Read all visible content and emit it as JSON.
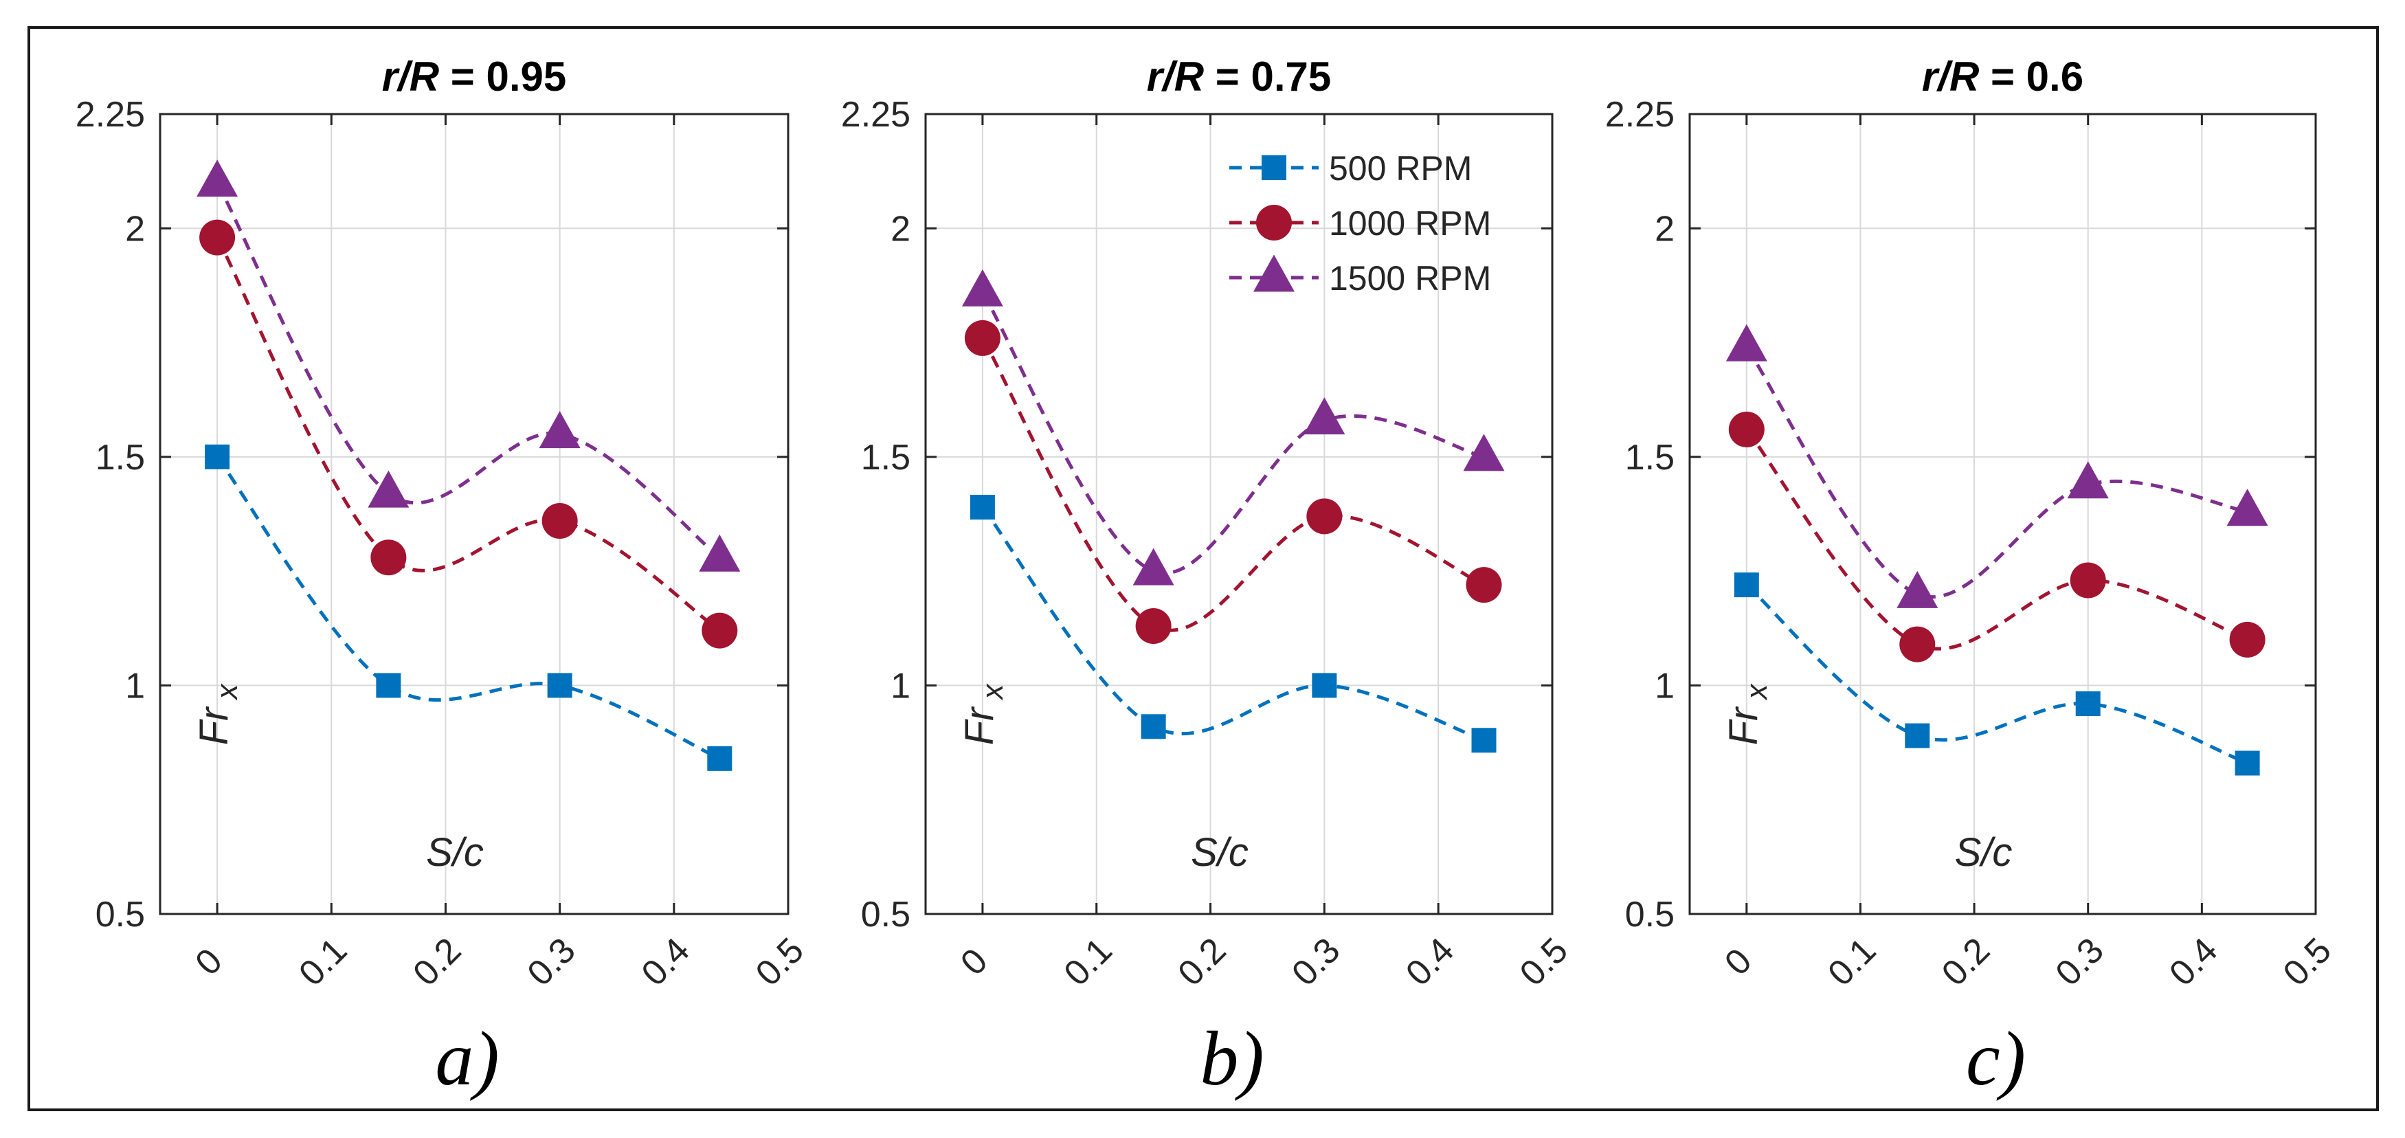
{
  "chart_data": [
    {
      "type": "line",
      "title": "r/R = 0.95",
      "title_italic_part": "r/R",
      "title_rest": " = 0.95",
      "panel_label": "a)",
      "xlabel": "S/c",
      "ylabel": "Fr",
      "ylabel_sub": "x",
      "xlim": [
        -0.05,
        0.5
      ],
      "ylim": [
        0.5,
        2.25
      ],
      "xticks": [
        "0",
        "0.1",
        "0.2",
        "0.3",
        "0.4",
        "0.5"
      ],
      "yticks": [
        "0.5",
        "1",
        "1.5",
        "2",
        "2.25"
      ],
      "grid": true,
      "legend": false,
      "x": [
        0,
        0.15,
        0.3,
        0.44
      ],
      "series": [
        {
          "name": "500 RPM",
          "values": [
            1.5,
            1.0,
            1.0,
            0.84
          ]
        },
        {
          "name": "1000 RPM",
          "values": [
            1.98,
            1.28,
            1.36,
            1.12
          ]
        },
        {
          "name": "1500 RPM",
          "values": [
            2.1,
            1.42,
            1.55,
            1.28
          ]
        }
      ]
    },
    {
      "type": "line",
      "title": "r/R = 0.75",
      "title_italic_part": "r/R",
      "title_rest": " = 0.75",
      "panel_label": "b)",
      "xlabel": "S/c",
      "ylabel": "Fr",
      "ylabel_sub": "x",
      "xlim": [
        -0.05,
        0.5
      ],
      "ylim": [
        0.5,
        2.25
      ],
      "xticks": [
        "0",
        "0.1",
        "0.2",
        "0.3",
        "0.4",
        "0.5"
      ],
      "yticks": [
        "0.5",
        "1",
        "1.5",
        "2",
        "2.25"
      ],
      "grid": true,
      "legend": true,
      "legend_position": "top-right",
      "x": [
        0,
        0.15,
        0.3,
        0.44
      ],
      "series": [
        {
          "name": "500 RPM",
          "values": [
            1.39,
            0.91,
            1.0,
            0.88
          ]
        },
        {
          "name": "1000 RPM",
          "values": [
            1.76,
            1.13,
            1.37,
            1.22
          ]
        },
        {
          "name": "1500 RPM",
          "values": [
            1.86,
            1.25,
            1.58,
            1.5
          ]
        }
      ]
    },
    {
      "type": "line",
      "title": "r/R = 0.6",
      "title_italic_part": "r/R",
      "title_rest": " = 0.6",
      "panel_label": "c)",
      "xlabel": "S/c",
      "ylabel": "Fr",
      "ylabel_sub": "x",
      "xlim": [
        -0.05,
        0.5
      ],
      "ylim": [
        0.5,
        2.25
      ],
      "xticks": [
        "0",
        "0.1",
        "0.2",
        "0.3",
        "0.4",
        "0.5"
      ],
      "yticks": [
        "0.5",
        "1",
        "1.5",
        "2",
        "2.25"
      ],
      "grid": true,
      "legend": false,
      "x": [
        0,
        0.15,
        0.3,
        0.44
      ],
      "series": [
        {
          "name": "500 RPM",
          "values": [
            1.22,
            0.89,
            0.96,
            0.83
          ]
        },
        {
          "name": "1000 RPM",
          "values": [
            1.56,
            1.09,
            1.23,
            1.1
          ]
        },
        {
          "name": "1500 RPM",
          "values": [
            1.74,
            1.2,
            1.44,
            1.38
          ]
        }
      ]
    }
  ],
  "colors": {
    "series": [
      "#0072BD",
      "#A2142F",
      "#7E2F8E"
    ],
    "grid": "#d9d9d9",
    "axis": "#262626",
    "frame": "#1a1a1a"
  },
  "markers": [
    "square",
    "circle",
    "triangle"
  ]
}
